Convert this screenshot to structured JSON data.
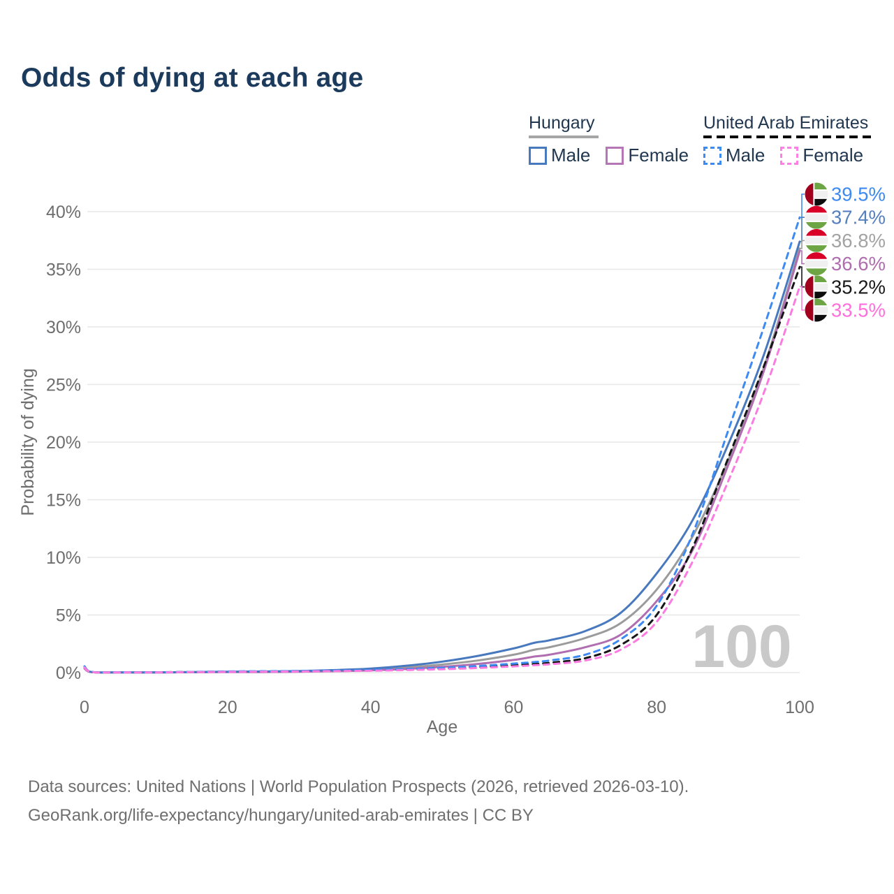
{
  "title": "Odds of dying at each age",
  "watermark": "100",
  "legend": {
    "hungary": {
      "label": "Hungary",
      "male": "Male",
      "female": "Female"
    },
    "uae": {
      "label": "United Arab Emirates",
      "male": "Male",
      "female": "Female"
    }
  },
  "footer": {
    "line1": "Data sources: United Nations | World Population Prospects (2026, retrieved 2026-03-10).",
    "line2": "GeoRank.org/life-expectancy/hungary/united-arab-emirates | CC BY"
  },
  "colors": {
    "hungary_male": "#4878bd",
    "hungary_female": "#b06eb0",
    "hungary_total": "#9b9b9b",
    "uae_male": "#3d8af2",
    "uae_female": "#fb7ce1",
    "uae_total": "#161616",
    "grid": "#e7e7e7",
    "tick_text": "#6e6e6e",
    "title_text": "#1b3a5c",
    "watermark_text": "#c9c9c9",
    "flag_red": "#d80027",
    "flag_green": "#6da544",
    "flag_white": "#f0f0f0",
    "flag_maroon": "#a2001d",
    "flag_black": "#0d0d0d"
  },
  "chart_data": {
    "type": "line",
    "title": "Odds of dying at each age",
    "xlabel": "Age",
    "ylabel": "Probability of dying",
    "xlim": [
      0,
      100
    ],
    "ylim_pct": [
      0,
      40
    ],
    "x_ticks": [
      0,
      20,
      40,
      60,
      80,
      100
    ],
    "y_ticks_pct": [
      0,
      5,
      10,
      15,
      20,
      25,
      30,
      35,
      40
    ],
    "grid": "horizontal",
    "legend_position": "top-right",
    "ages": [
      0,
      1,
      5,
      10,
      15,
      20,
      25,
      30,
      35,
      40,
      45,
      50,
      55,
      60,
      63,
      65,
      70,
      75,
      80,
      85,
      90,
      95,
      100
    ],
    "series": [
      {
        "id": "hu_total",
        "name": "Hungary - Both sexes",
        "color": "#9b9b9b",
        "dash": "solid",
        "end_value_pct": 36.8,
        "values_pct": [
          0.4,
          0.04,
          0.02,
          0.02,
          0.04,
          0.06,
          0.08,
          0.11,
          0.17,
          0.27,
          0.45,
          0.7,
          1.05,
          1.55,
          2.0,
          2.2,
          3.0,
          4.3,
          7.2,
          11.8,
          18.4,
          26.5,
          36.8
        ]
      },
      {
        "id": "hu_female",
        "name": "Hungary - Female",
        "color": "#b06eb0",
        "dash": "solid",
        "end_value_pct": 36.6,
        "values_pct": [
          0.35,
          0.04,
          0.01,
          0.01,
          0.03,
          0.04,
          0.05,
          0.08,
          0.12,
          0.2,
          0.32,
          0.5,
          0.75,
          1.1,
          1.4,
          1.55,
          2.2,
          3.3,
          6.2,
          10.6,
          18.0,
          26.2,
          36.6
        ]
      },
      {
        "id": "hu_male",
        "name": "Hungary - Male",
        "color": "#4878bd",
        "dash": "solid",
        "end_value_pct": 37.4,
        "values_pct": [
          0.45,
          0.05,
          0.02,
          0.02,
          0.05,
          0.08,
          0.1,
          0.14,
          0.22,
          0.35,
          0.6,
          0.95,
          1.45,
          2.1,
          2.6,
          2.8,
          3.6,
          5.2,
          8.6,
          13.2,
          19.8,
          27.6,
          37.4
        ]
      },
      {
        "id": "uae_total",
        "name": "United Arab Emirates - Both sexes",
        "color": "#161616",
        "dash": "dashed",
        "end_value_pct": 35.2,
        "values_pct": [
          0.5,
          0.05,
          0.03,
          0.03,
          0.05,
          0.08,
          0.1,
          0.12,
          0.15,
          0.19,
          0.26,
          0.35,
          0.48,
          0.65,
          0.75,
          0.85,
          1.25,
          2.4,
          5.0,
          10.8,
          18.6,
          26.6,
          35.2
        ]
      },
      {
        "id": "uae_male",
        "name": "United Arab Emirates - Male",
        "color": "#3d8af2",
        "dash": "dashed",
        "end_value_pct": 39.5,
        "values_pct": [
          0.55,
          0.06,
          0.03,
          0.03,
          0.06,
          0.1,
          0.12,
          0.14,
          0.18,
          0.23,
          0.31,
          0.42,
          0.57,
          0.78,
          0.92,
          1.05,
          1.55,
          2.9,
          5.8,
          12.0,
          21.0,
          30.0,
          39.5
        ]
      },
      {
        "id": "uae_female",
        "name": "United Arab Emirates - Female",
        "color": "#fb7ce1",
        "dash": "dashed",
        "end_value_pct": 33.5,
        "values_pct": [
          0.45,
          0.05,
          0.02,
          0.02,
          0.04,
          0.06,
          0.08,
          0.1,
          0.13,
          0.16,
          0.22,
          0.29,
          0.4,
          0.54,
          0.64,
          0.72,
          1.05,
          2.0,
          4.4,
          9.6,
          16.6,
          24.3,
          33.5
        ]
      }
    ],
    "end_labels": [
      {
        "text": "39.5%",
        "series": "uae_male",
        "flag": "ae",
        "color": "#3d8af2"
      },
      {
        "text": "37.4%",
        "series": "hu_male",
        "flag": "hu",
        "color": "#5580c0"
      },
      {
        "text": "36.8%",
        "series": "hu_total",
        "flag": "hu",
        "color": "#a3a3a3"
      },
      {
        "text": "36.6%",
        "series": "hu_female",
        "flag": "hu",
        "color": "#b06eb0"
      },
      {
        "text": "35.2%",
        "series": "uae_total",
        "flag": "ae",
        "color": "#1a1a1a"
      },
      {
        "text": "33.5%",
        "series": "uae_female",
        "flag": "ae",
        "color": "#ff70dd"
      }
    ]
  }
}
